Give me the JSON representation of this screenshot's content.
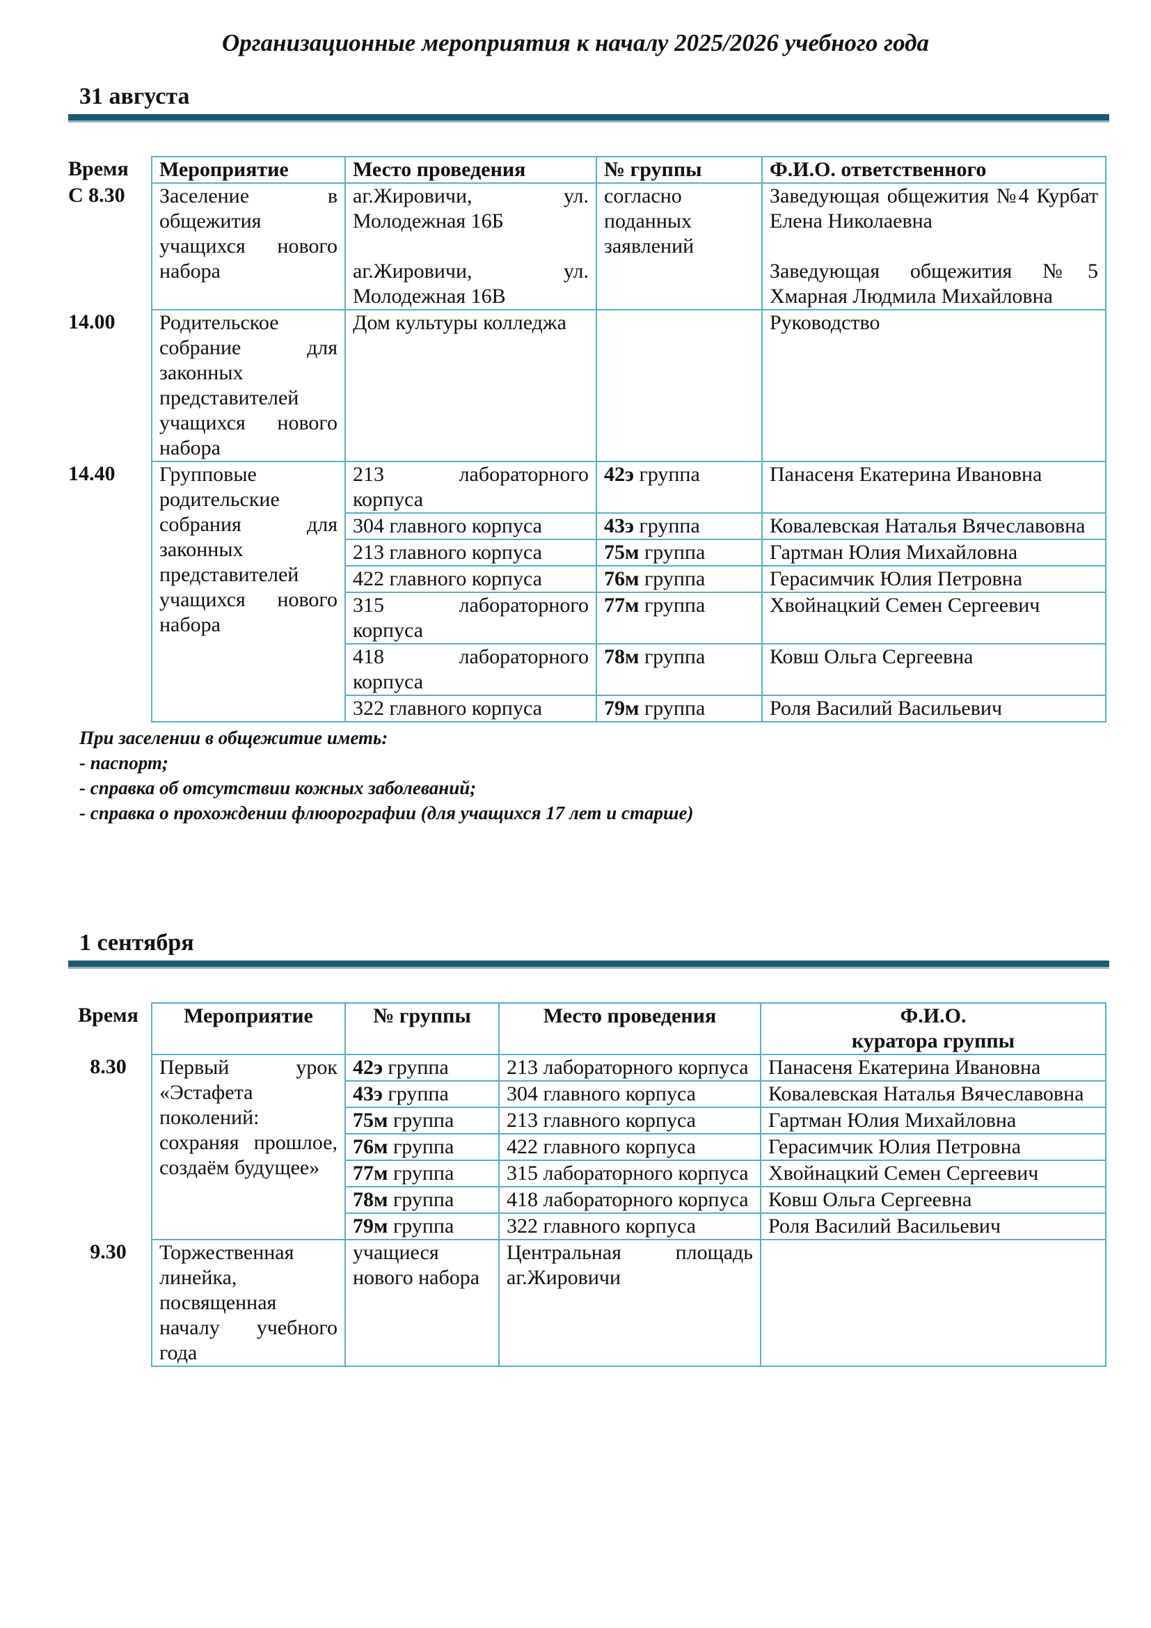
{
  "title": "Организационные мероприятия к началу 2025/2026 учебного года",
  "sections": [
    {
      "date": "31 августа",
      "table": {
        "headers": [
          "Время",
          "Мероприятие",
          "Место проведения",
          "№ группы",
          "Ф.И.О. ответственного"
        ],
        "blocks": [
          {
            "time": "С 8.30",
            "event": "Заселение в общежития учащихся нового набора",
            "items": [
              {
                "place": [
                  "аг.Жировичи, ул. Молодежная 16Б",
                  "аг.Жировичи, ул. Молодежная 16В"
                ],
                "group": "согласно поданных заявлений",
                "person": [
                  "Заведующая общежития №4 Курбат Елена Николаевна",
                  "Заведующая общежития №5 Хмарная Людмила Михайловна"
                ]
              }
            ]
          },
          {
            "time": "14.00",
            "event": "Родительское собрание для законных представителей учащихся нового набора",
            "items": [
              {
                "place": "Дом культуры колледжа",
                "group": null,
                "person": "Руководство"
              }
            ]
          },
          {
            "time": "14.40",
            "event": "Групповые родительские собрания для законных представителей учащихся нового набора",
            "items": [
              {
                "place": "213 лабораторного корпуса",
                "group": {
                  "code": "42э",
                  "label": "группа"
                },
                "person": "Панасеня Екатерина Ивановна"
              },
              {
                "place": "304 главного корпуса",
                "group": {
                  "code": "43э",
                  "label": "группа"
                },
                "person": "Ковалевская Наталья Вячеславовна"
              },
              {
                "place": "213 главного корпуса",
                "group": {
                  "code": "75м",
                  "label": "группа"
                },
                "person": "Гартман Юлия Михайловна"
              },
              {
                "place": "422 главного корпуса",
                "group": {
                  "code": "76м",
                  "label": "группа"
                },
                "person": "Герасимчик Юлия Петровна"
              },
              {
                "place": "315 лабораторного корпуса",
                "group": {
                  "code": "77м",
                  "label": "группа"
                },
                "person": "Хвойнацкий Семен Сергеевич"
              },
              {
                "place": "418 лабораторного корпуса",
                "group": {
                  "code": "78м",
                  "label": "группа"
                },
                "person": "Ковш Ольга Сергеевна"
              },
              {
                "place": "322 главного корпуса",
                "group": {
                  "code": "79м",
                  "label": "группа"
                },
                "person": "Роля Василий Васильевич"
              }
            ]
          }
        ]
      },
      "notes": {
        "heading": "При заселении в общежитие иметь:",
        "items": [
          "- паспорт;",
          "- справка об отсутствии кожных заболеваний;",
          "- справка о прохождении флюорографии (для учащихся 17 лет и старше)"
        ]
      }
    },
    {
      "date": "1 сентября",
      "table": {
        "headers": [
          "Время",
          "Мероприятие",
          "№ группы",
          "Место проведения",
          "Ф.И.О.\nкуратора группы"
        ],
        "blocks": [
          {
            "time": "8.30",
            "event": "Первый урок «Эстафета поколений: сохраняя прошлое, создаём будущее»",
            "items": [
              {
                "group": {
                  "code": "42э",
                  "label": "группа"
                },
                "place": "213 лабораторного корпуса",
                "person": "Панасеня Екатерина Ивановна"
              },
              {
                "group": {
                  "code": "43э",
                  "label": "группа"
                },
                "place": "304 главного корпуса",
                "person": "Ковалевская Наталья Вячеславовна"
              },
              {
                "group": {
                  "code": "75м",
                  "label": "группа"
                },
                "place": "213 главного корпуса",
                "person": "Гартман Юлия Михайловна"
              },
              {
                "group": {
                  "code": "76м",
                  "label": "группа"
                },
                "place": "422 главного корпуса",
                "person": "Герасимчик Юлия Петровна"
              },
              {
                "group": {
                  "code": "77м",
                  "label": "группа"
                },
                "place": "315 лабораторного корпуса",
                "person": "Хвойнацкий Семен Сергеевич"
              },
              {
                "group": {
                  "code": "78м",
                  "label": "группа"
                },
                "place": "418 лабораторного корпуса",
                "person": "Ковш Ольга Сергеевна"
              },
              {
                "group": {
                  "code": "79м",
                  "label": "группа"
                },
                "place": "322 главного корпуса",
                "person": "Роля Василий Васильевич"
              }
            ]
          },
          {
            "time": "9.30",
            "event": "Торжественная линейка, посвященная началу учебного года",
            "items": [
              {
                "group": "учащиеся нового набора",
                "place": "Центральная площадь аг.Жировичи",
                "person": null
              }
            ]
          }
        ]
      }
    }
  ]
}
